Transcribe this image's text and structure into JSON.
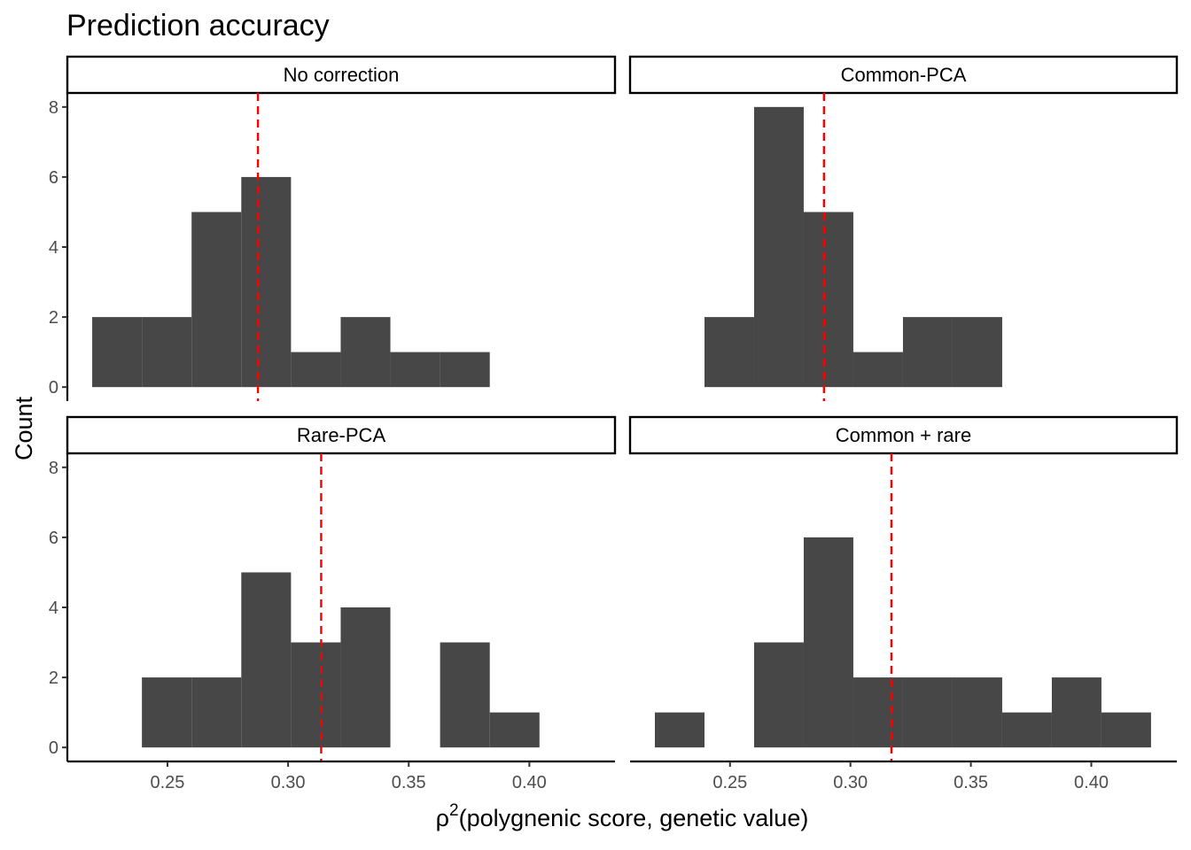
{
  "chart_data": {
    "type": "histogram",
    "title": "Prediction accuracy",
    "ylabel": "Count",
    "xlabel_sym": "ρ",
    "xlabel_sup": "2",
    "xlabel_rest": "(polygnenic score, genetic value)",
    "xlim": [
      0.2085,
      0.4355
    ],
    "ylim": [
      -0.4,
      8.4
    ],
    "xticks": [
      0.25,
      0.3,
      0.35,
      0.4
    ],
    "xtick_labels": [
      "0.25",
      "0.30",
      "0.35",
      "0.40"
    ],
    "yticks": [
      0,
      2,
      4,
      6,
      8
    ],
    "ytick_labels": [
      "0",
      "2",
      "4",
      "6",
      "8"
    ],
    "bar_color": "#474747",
    "mean_line_color": "#ff0000",
    "bin_width": 0.0206,
    "panels": [
      {
        "label": "No correction",
        "bins": [
          {
            "start": 0.2188,
            "count": 2
          },
          {
            "start": 0.2394,
            "count": 2
          },
          {
            "start": 0.26,
            "count": 5
          },
          {
            "start": 0.2806,
            "count": 6
          },
          {
            "start": 0.3012,
            "count": 1
          },
          {
            "start": 0.3218,
            "count": 2
          },
          {
            "start": 0.3424,
            "count": 1
          },
          {
            "start": 0.363,
            "count": 1
          }
        ],
        "mean": 0.2875
      },
      {
        "label": "Common-PCA",
        "bins": [
          {
            "start": 0.2394,
            "count": 2
          },
          {
            "start": 0.26,
            "count": 8
          },
          {
            "start": 0.2806,
            "count": 5
          },
          {
            "start": 0.3012,
            "count": 1
          },
          {
            "start": 0.3218,
            "count": 2
          },
          {
            "start": 0.3424,
            "count": 2
          }
        ],
        "mean": 0.289
      },
      {
        "label": "Rare-PCA",
        "bins": [
          {
            "start": 0.2394,
            "count": 2
          },
          {
            "start": 0.26,
            "count": 2
          },
          {
            "start": 0.2806,
            "count": 5
          },
          {
            "start": 0.3012,
            "count": 3
          },
          {
            "start": 0.3218,
            "count": 4
          },
          {
            "start": 0.363,
            "count": 3
          },
          {
            "start": 0.3836,
            "count": 1
          }
        ],
        "mean": 0.3137
      },
      {
        "label": "Common + rare",
        "bins": [
          {
            "start": 0.2188,
            "count": 1
          },
          {
            "start": 0.26,
            "count": 3
          },
          {
            "start": 0.2806,
            "count": 6
          },
          {
            "start": 0.3012,
            "count": 2
          },
          {
            "start": 0.3218,
            "count": 2
          },
          {
            "start": 0.3424,
            "count": 2
          },
          {
            "start": 0.363,
            "count": 1
          },
          {
            "start": 0.3836,
            "count": 2
          },
          {
            "start": 0.4042,
            "count": 1
          }
        ],
        "mean": 0.317
      }
    ]
  }
}
